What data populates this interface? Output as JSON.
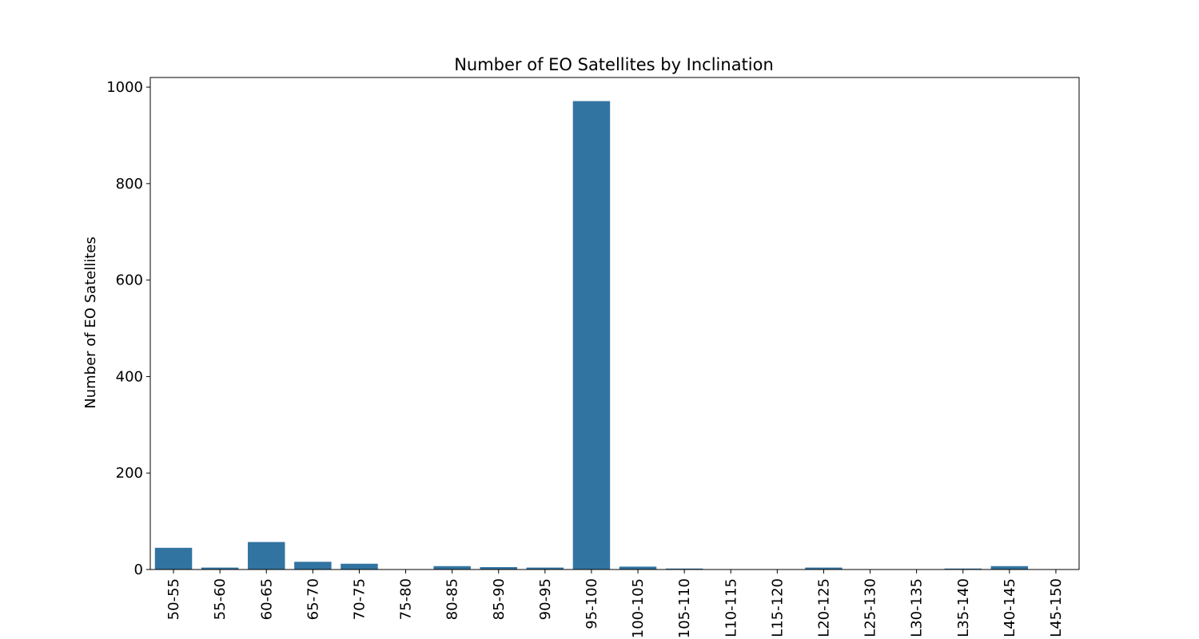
{
  "chart_data": {
    "type": "bar",
    "title": "Number of EO Satellites by Inclination",
    "xlabel": "",
    "ylabel": "Number of EO Satellites",
    "categories": [
      "50-55",
      "55-60",
      "60-65",
      "65-70",
      "70-75",
      "75-80",
      "80-85",
      "85-90",
      "90-95",
      "95-100",
      "100-105",
      "105-110",
      "110-115",
      "115-120",
      "120-125",
      "125-130",
      "130-135",
      "135-140",
      "140-145",
      "145-150"
    ],
    "category_labels": [
      "50-55",
      "55-60",
      "60-65",
      "65-70",
      "70-75",
      "75-80",
      "80-85",
      "85-90",
      "90-95",
      "95-100",
      "100-105",
      "105-110",
      "L10-115",
      "L15-120",
      "L20-125",
      "L25-130",
      "L30-135",
      "L35-140",
      "L40-145",
      "L45-150"
    ],
    "values": [
      45,
      4,
      57,
      16,
      12,
      0,
      7,
      5,
      4,
      971,
      6,
      2,
      0,
      0,
      4,
      0,
      0,
      2,
      7,
      0
    ],
    "ylim": [
      0,
      1020
    ],
    "yticks": [
      0,
      200,
      400,
      600,
      800,
      1000
    ],
    "bar_color": "#3274a1",
    "grid": false,
    "legend": "none"
  }
}
